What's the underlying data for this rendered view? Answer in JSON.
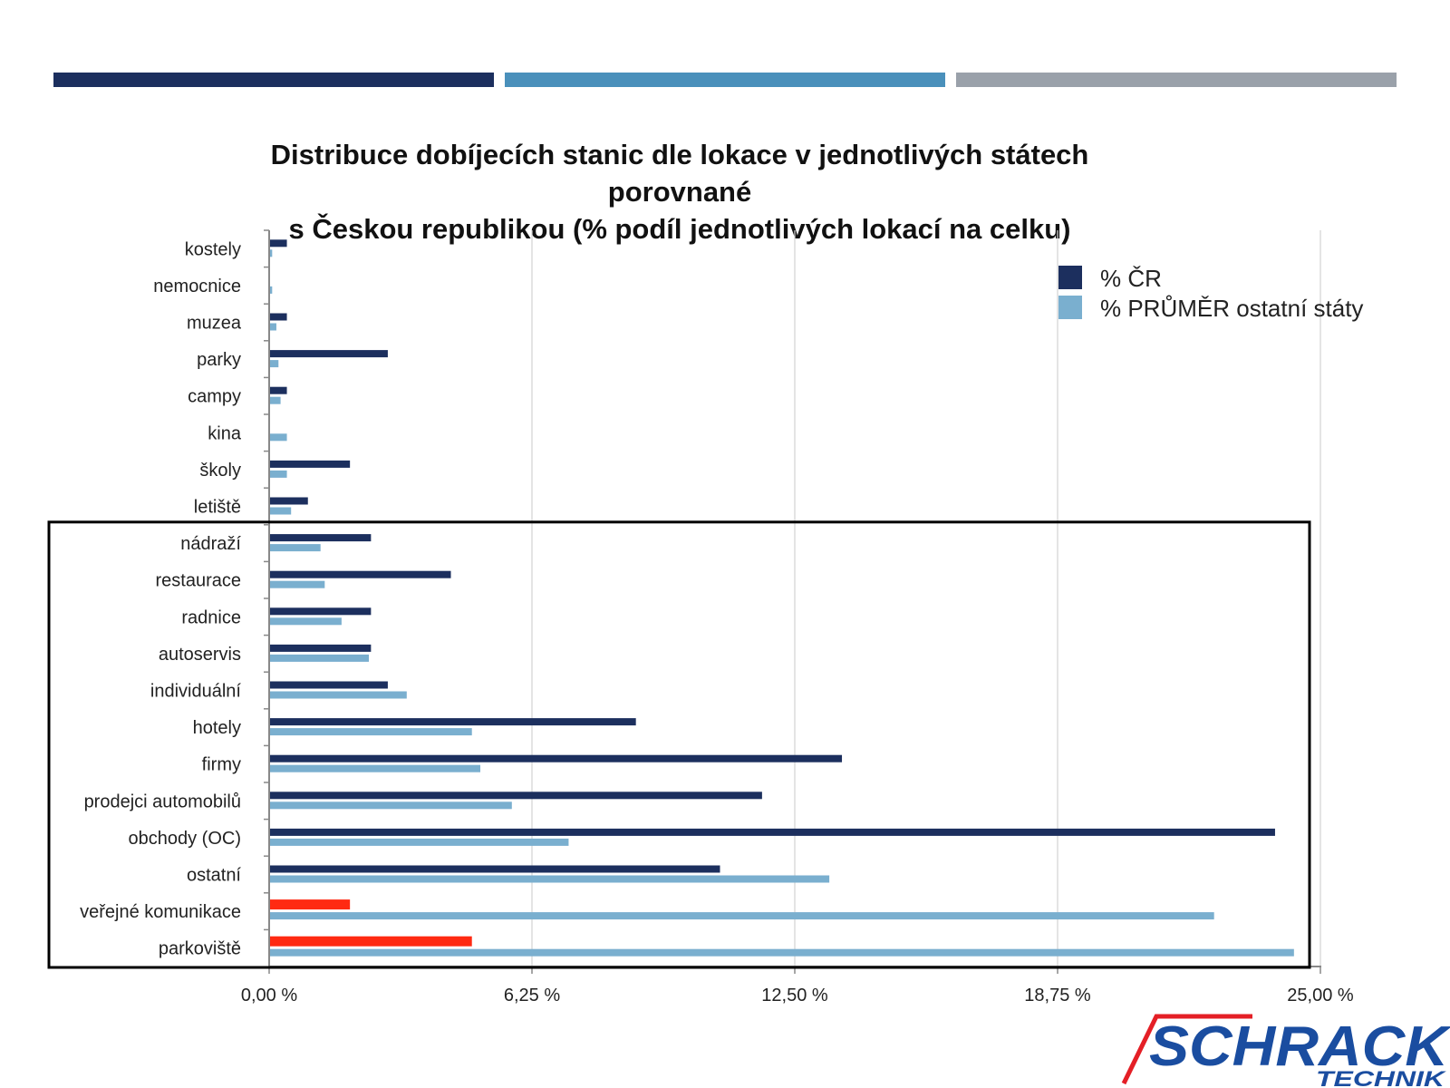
{
  "colors": {
    "bar_top_1": "#1c2f5e",
    "bar_top_2": "#4a90bb",
    "bar_top_3": "#9aa1aa",
    "series_cr": "#1c2f5e",
    "series_avg": "#7aafcf",
    "highlight": "#ff2a12",
    "grid": "#d3d3d3",
    "logo_red": "#e41f26",
    "logo_blue": "#1a4da0"
  },
  "logo": {
    "name": "SCHRACK",
    "sub": "TECHNIK"
  },
  "chart_data": {
    "type": "bar",
    "orientation": "horizontal",
    "title_line1": "Distribuce dobíjecích stanic dle lokace v jednotlivých státech porovnané",
    "title_line2": "s Českou republikou (% podíl jednotlivých lokací na celku)",
    "categories": [
      "kostely",
      "nemocnice",
      "muzea",
      "parky",
      "campy",
      "kina",
      "školy",
      "letiště",
      "nádraží",
      "restaurace",
      "radnice",
      "autoservis",
      "individuální",
      "hotely",
      "firmy",
      "prodejci automobilů",
      "obchody (OC)",
      "ostatní",
      "veřejné komunikace",
      "parkoviště"
    ],
    "series": [
      {
        "name": "% ČR",
        "values": [
          0.4,
          0.0,
          0.4,
          2.8,
          0.4,
          0.0,
          1.9,
          0.9,
          2.4,
          4.3,
          2.4,
          2.4,
          2.8,
          8.7,
          13.6,
          11.7,
          23.9,
          10.7,
          1.9,
          4.8
        ],
        "highlight_categories": [
          "veřejné komunikace",
          "parkoviště"
        ]
      },
      {
        "name": "% PRŮMĚR ostatní státy",
        "values": [
          0.05,
          0.05,
          0.15,
          0.2,
          0.25,
          0.4,
          0.4,
          0.5,
          1.2,
          1.3,
          1.7,
          2.35,
          3.25,
          4.8,
          5.0,
          5.75,
          7.1,
          13.3,
          22.45,
          24.35
        ]
      }
    ],
    "xlim": [
      0,
      25
    ],
    "x_ticks": [
      "0,00 %",
      "6,25 %",
      "12,50 %",
      "18,75 %",
      "25,00 %"
    ],
    "x_tick_values": [
      0,
      6.25,
      12.5,
      18.75,
      25
    ],
    "grid": true,
    "legend_position": "top-right",
    "highlight_box_categories": [
      "nádraží",
      "parkoviště"
    ]
  }
}
